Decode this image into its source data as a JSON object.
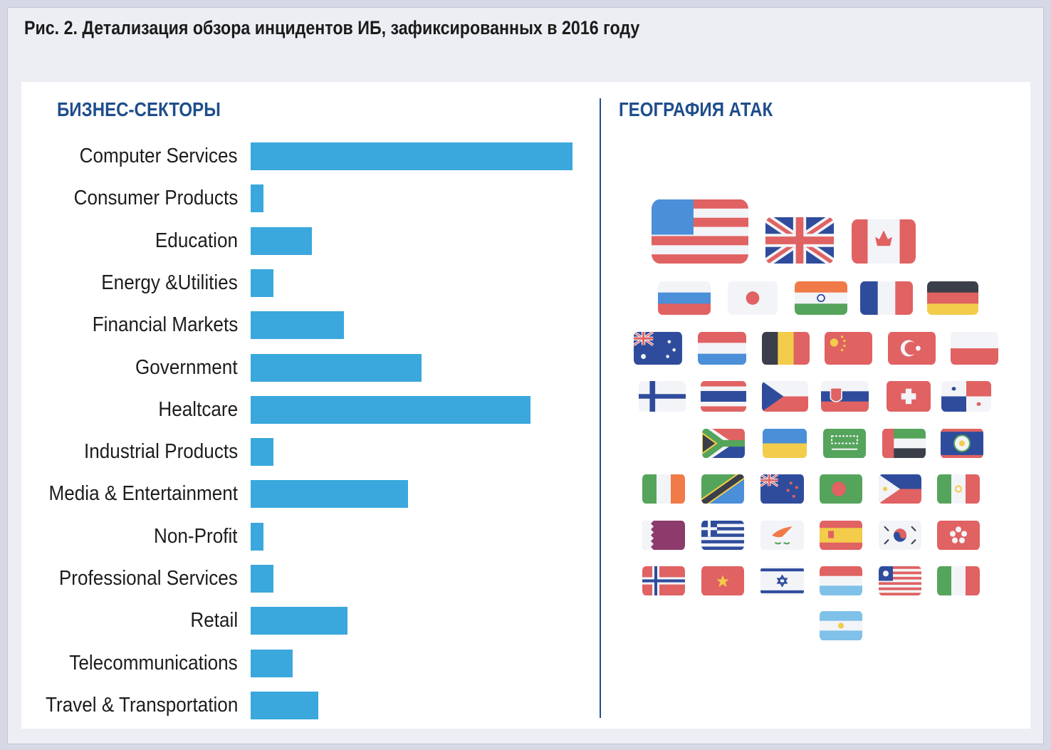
{
  "title": "Рис. 2. Детализация обзора инцидентов ИБ, зафиксированных в 2016 году",
  "left_heading": "БИЗНЕС-СЕКТОРЫ",
  "right_heading": "ГЕОГРАФИЯ АТАК",
  "chart_data": {
    "type": "bar",
    "orientation": "horizontal",
    "title": "БИЗНЕС-СЕКТОРЫ",
    "categories": [
      "Computer Services",
      "Consumer Products",
      "Education",
      "Energy &Utilities",
      "Financial Markets",
      "Government",
      "Healtcare",
      "Industrial Products",
      "Media & Entertainment",
      "Non-Profit",
      "Professional Services",
      "Retail",
      "Telecommunications",
      "Travel & Transportation"
    ],
    "values_relative_to_max_percent": [
      100,
      4,
      19,
      7,
      29,
      53,
      87,
      7,
      49,
      4,
      7,
      30,
      13,
      21
    ],
    "axis_shown": false,
    "grid": false,
    "bar_color": "#3aa8dc"
  },
  "flags": [
    "USA",
    "United Kingdom",
    "Canada",
    "Russia",
    "Japan",
    "India",
    "France",
    "Germany",
    "Australia",
    "Netherlands",
    "Belgium",
    "China",
    "Turkey",
    "Poland",
    "Finland",
    "Thailand",
    "Czech Republic",
    "Slovakia",
    "Switzerland",
    "Panama",
    "South Africa",
    "Ukraine",
    "Saudi Arabia",
    "UAE",
    "Belize",
    "Ireland",
    "Tanzania",
    "New Zealand",
    "Bangladesh",
    "Philippines",
    "Mexico",
    "Qatar",
    "Greece",
    "Cyprus",
    "Spain",
    "South Korea",
    "Hong Kong",
    "Norway",
    "Vietnam",
    "Israel",
    "Luxembourg",
    "Liberia",
    "Italy",
    "Argentina"
  ],
  "colors": {
    "heading": "#1f4e8c",
    "bar": "#3aa8dc"
  }
}
